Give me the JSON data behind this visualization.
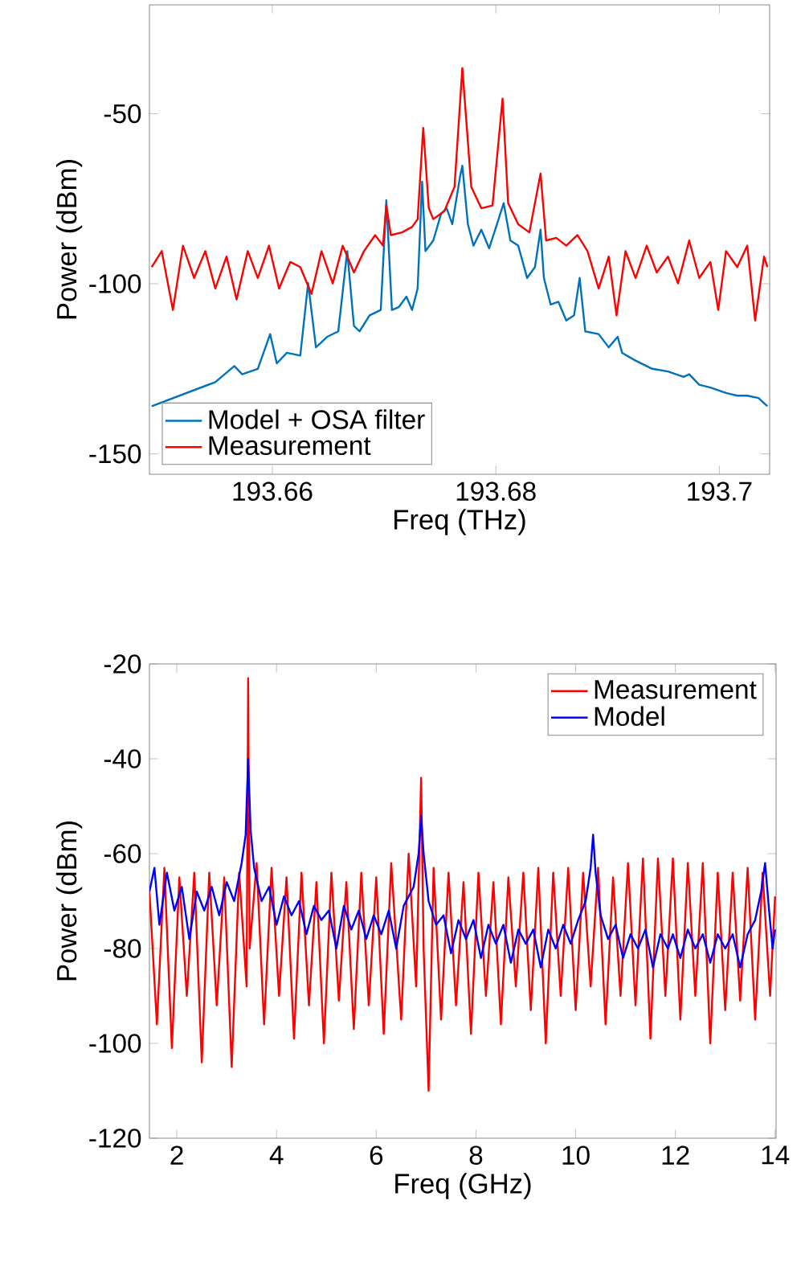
{
  "chart_data": [
    {
      "type": "line",
      "xlabel": "Freq (THz)",
      "ylabel": "Power (dBm)",
      "xlim": [
        193.649,
        193.7045
      ],
      "ylim": [
        -156,
        -18
      ],
      "xticks": [
        193.66,
        193.68,
        193.7
      ],
      "yticks": [
        -150,
        -100,
        -50
      ],
      "legend": "bottom left",
      "series": [
        {
          "name": "Model + OSA filter",
          "color": "#0072bd",
          "x": [
            193.6492,
            193.6549,
            193.6563,
            193.6566,
            193.6573,
            193.6587,
            193.6598,
            193.6604,
            193.6613,
            193.6625,
            193.6632,
            193.6639,
            193.6649,
            193.6659,
            193.6667,
            193.6673,
            193.6678,
            193.6687,
            193.6697,
            193.6702,
            193.6707,
            193.6713,
            193.672,
            193.6725,
            193.673,
            193.6734,
            193.6737,
            193.6744,
            193.6751,
            193.6756,
            193.6761,
            193.6768,
            193.677,
            193.6775,
            193.678,
            193.6787,
            193.6794,
            193.6801,
            193.6807,
            193.6813,
            193.682,
            193.6828,
            193.6835,
            193.684,
            193.6843,
            193.6849,
            193.6856,
            193.6863,
            193.687,
            193.6875,
            193.688,
            193.6892,
            193.6901,
            193.6909,
            193.6913,
            193.6925,
            193.694,
            193.6954,
            193.6968,
            193.6973,
            193.6982,
            193.6992,
            193.7006,
            193.7016,
            193.7025,
            193.7035,
            193.7043
          ],
          "values": [
            -136.0,
            -128.9,
            -125.0,
            -124.2,
            -126.6,
            -125.0,
            -114.8,
            -123.4,
            -120.3,
            -121.1,
            -99.8,
            -118.7,
            -115.6,
            -114.0,
            -90.4,
            -112.4,
            -114.0,
            -109.3,
            -107.7,
            -75.5,
            -107.7,
            -106.9,
            -103.8,
            -107.7,
            -101.4,
            -70.0,
            -90.4,
            -87.3,
            -79.4,
            -77.8,
            -82.5,
            -68.4,
            -65.3,
            -82.5,
            -88.8,
            -84.1,
            -89.6,
            -82.5,
            -76.3,
            -87.3,
            -88.8,
            -98.3,
            -95.1,
            -84.1,
            -98.3,
            -106.1,
            -105.3,
            -110.8,
            -109.3,
            -98.3,
            -114.0,
            -114.8,
            -118.7,
            -115.6,
            -120.3,
            -122.6,
            -125.0,
            -125.8,
            -127.4,
            -126.6,
            -129.7,
            -130.5,
            -132.1,
            -132.9,
            -132.9,
            -133.6,
            -136.0
          ]
        },
        {
          "name": "Measurement",
          "color": "#ff0000",
          "x": [
            193.6492,
            193.6501,
            193.6511,
            193.652,
            193.653,
            193.654,
            193.6549,
            193.6559,
            193.6568,
            193.6578,
            193.6587,
            193.6597,
            193.6606,
            193.6616,
            193.6625,
            193.6635,
            193.6644,
            193.6654,
            193.6663,
            193.6673,
            193.6682,
            193.6692,
            193.6699,
            193.6702,
            193.6706,
            193.6716,
            193.6725,
            193.673,
            193.6735,
            193.674,
            193.6744,
            193.6754,
            193.6763,
            193.677,
            193.6778,
            193.6787,
            193.6797,
            193.6806,
            193.6811,
            193.682,
            193.683,
            193.684,
            193.6845,
            193.6854,
            193.6863,
            193.6873,
            193.6882,
            193.6892,
            193.6901,
            193.6908,
            193.6916,
            193.6925,
            193.6935,
            193.6944,
            193.6954,
            193.6963,
            193.6973,
            193.6982,
            193.6992,
            193.6999,
            193.7006,
            193.7016,
            193.7025,
            193.7032,
            193.704,
            193.7043
          ],
          "values": [
            -95.1,
            -90.4,
            -107.7,
            -88.8,
            -98.3,
            -90.4,
            -101.4,
            -92.0,
            -104.6,
            -90.4,
            -98.3,
            -88.8,
            -101.4,
            -93.6,
            -95.1,
            -103.0,
            -90.4,
            -99.9,
            -88.8,
            -96.7,
            -90.4,
            -85.7,
            -88.8,
            -77.0,
            -85.7,
            -84.9,
            -83.3,
            -81.0,
            -54.2,
            -77.8,
            -81.0,
            -78.6,
            -71.5,
            -36.6,
            -71.5,
            -77.8,
            -77.0,
            -45.6,
            -76.3,
            -82.5,
            -84.9,
            -67.6,
            -87.3,
            -86.5,
            -88.8,
            -85.7,
            -90.4,
            -101.4,
            -92.0,
            -109.3,
            -90.4,
            -98.3,
            -88.8,
            -96.7,
            -92.0,
            -99.9,
            -87.3,
            -98.3,
            -93.6,
            -107.7,
            -90.4,
            -95.1,
            -88.8,
            -110.8,
            -92.0,
            -95.1
          ]
        }
      ]
    },
    {
      "type": "line",
      "xlabel": "Freq (GHz)",
      "ylabel": "Power (dBm)",
      "xlim": [
        1.45,
        14.02
      ],
      "ylim": [
        -120,
        -20
      ],
      "xticks": [
        2,
        4,
        6,
        8,
        10,
        12,
        14
      ],
      "yticks": [
        -120,
        -100,
        -80,
        -60,
        -40,
        -20
      ],
      "legend": "top right",
      "series": [
        {
          "name": "Measurement",
          "color": "#ff0000",
          "x": [
            1.45,
            1.6,
            1.75,
            1.9,
            2.05,
            2.2,
            2.35,
            2.5,
            2.65,
            2.8,
            2.95,
            3.1,
            3.25,
            3.4,
            3.43,
            3.46,
            3.6,
            3.75,
            3.9,
            4.05,
            4.2,
            4.35,
            4.5,
            4.65,
            4.8,
            4.95,
            5.1,
            5.25,
            5.4,
            5.55,
            5.7,
            5.85,
            6.0,
            6.15,
            6.3,
            6.5,
            6.65,
            6.8,
            6.9,
            6.95,
            7.05,
            7.15,
            7.3,
            7.45,
            7.6,
            7.75,
            7.9,
            8.05,
            8.2,
            8.35,
            8.5,
            8.65,
            8.8,
            8.95,
            9.1,
            9.25,
            9.4,
            9.55,
            9.7,
            9.85,
            10.0,
            10.15,
            10.3,
            10.45,
            10.6,
            10.75,
            10.9,
            11.05,
            11.2,
            11.35,
            11.5,
            11.65,
            11.8,
            11.95,
            12.1,
            12.25,
            12.4,
            12.55,
            12.7,
            12.85,
            13.0,
            13.15,
            13.3,
            13.45,
            13.6,
            13.75,
            13.9,
            14.0
          ],
          "values": [
            -68,
            -96,
            -63,
            -101,
            -65,
            -90,
            -64,
            -104,
            -64,
            -92,
            -65,
            -105,
            -64,
            -88,
            -23,
            -80,
            -62,
            -96,
            -63,
            -90,
            -65,
            -99,
            -64,
            -92,
            -66,
            -100,
            -64,
            -91,
            -66,
            -97,
            -64,
            -92,
            -65,
            -98,
            -62,
            -95,
            -60,
            -88,
            -44,
            -80,
            -110,
            -63,
            -95,
            -64,
            -92,
            -66,
            -98,
            -64,
            -90,
            -66,
            -96,
            -65,
            -88,
            -64,
            -93,
            -63,
            -100,
            -64,
            -90,
            -63,
            -93,
            -64,
            -88,
            -63,
            -96,
            -65,
            -90,
            -62,
            -92,
            -61,
            -99,
            -61,
            -90,
            -61,
            -95,
            -62,
            -90,
            -62,
            -100,
            -64,
            -93,
            -64,
            -91,
            -63,
            -95,
            -64,
            -90,
            -69
          ]
        },
        {
          "name": "Model",
          "color": "#0000ff",
          "x": [
            1.45,
            1.55,
            1.65,
            1.8,
            1.95,
            2.1,
            2.25,
            2.4,
            2.55,
            2.7,
            2.85,
            3.0,
            3.15,
            3.3,
            3.38,
            3.43,
            3.48,
            3.55,
            3.7,
            3.85,
            4.0,
            4.15,
            4.3,
            4.45,
            4.6,
            4.75,
            4.9,
            5.05,
            5.2,
            5.35,
            5.5,
            5.65,
            5.8,
            5.95,
            6.1,
            6.25,
            6.4,
            6.55,
            6.75,
            6.85,
            6.9,
            6.95,
            7.05,
            7.2,
            7.35,
            7.5,
            7.65,
            7.8,
            7.95,
            8.1,
            8.25,
            8.4,
            8.55,
            8.7,
            8.85,
            9.0,
            9.15,
            9.3,
            9.45,
            9.6,
            9.75,
            9.9,
            10.05,
            10.2,
            10.3,
            10.35,
            10.4,
            10.5,
            10.65,
            10.8,
            10.95,
            11.1,
            11.25,
            11.4,
            11.55,
            11.7,
            11.85,
            11.95,
            12.1,
            12.25,
            12.4,
            12.55,
            12.7,
            12.85,
            13.0,
            13.15,
            13.3,
            13.45,
            13.6,
            13.72,
            13.8,
            13.88,
            13.95,
            14.0
          ],
          "values": [
            -68,
            -63,
            -75,
            -64,
            -72,
            -67,
            -78,
            -68,
            -72,
            -67,
            -73,
            -66,
            -70,
            -62,
            -56,
            -40,
            -55,
            -63,
            -70,
            -67,
            -75,
            -69,
            -73,
            -70,
            -77,
            -71,
            -74,
            -72,
            -80,
            -71,
            -76,
            -72,
            -78,
            -73,
            -77,
            -72,
            -80,
            -71,
            -67,
            -60,
            -52,
            -60,
            -70,
            -75,
            -73,
            -81,
            -74,
            -78,
            -74,
            -82,
            -75,
            -79,
            -75,
            -83,
            -76,
            -79,
            -76,
            -84,
            -76,
            -80,
            -75,
            -79,
            -74,
            -70,
            -63,
            -56,
            -64,
            -73,
            -78,
            -75,
            -82,
            -77,
            -80,
            -76,
            -84,
            -77,
            -80,
            -77,
            -82,
            -76,
            -80,
            -77,
            -83,
            -77,
            -80,
            -77,
            -84,
            -77,
            -74,
            -68,
            -62,
            -72,
            -80,
            -76
          ]
        }
      ]
    }
  ]
}
